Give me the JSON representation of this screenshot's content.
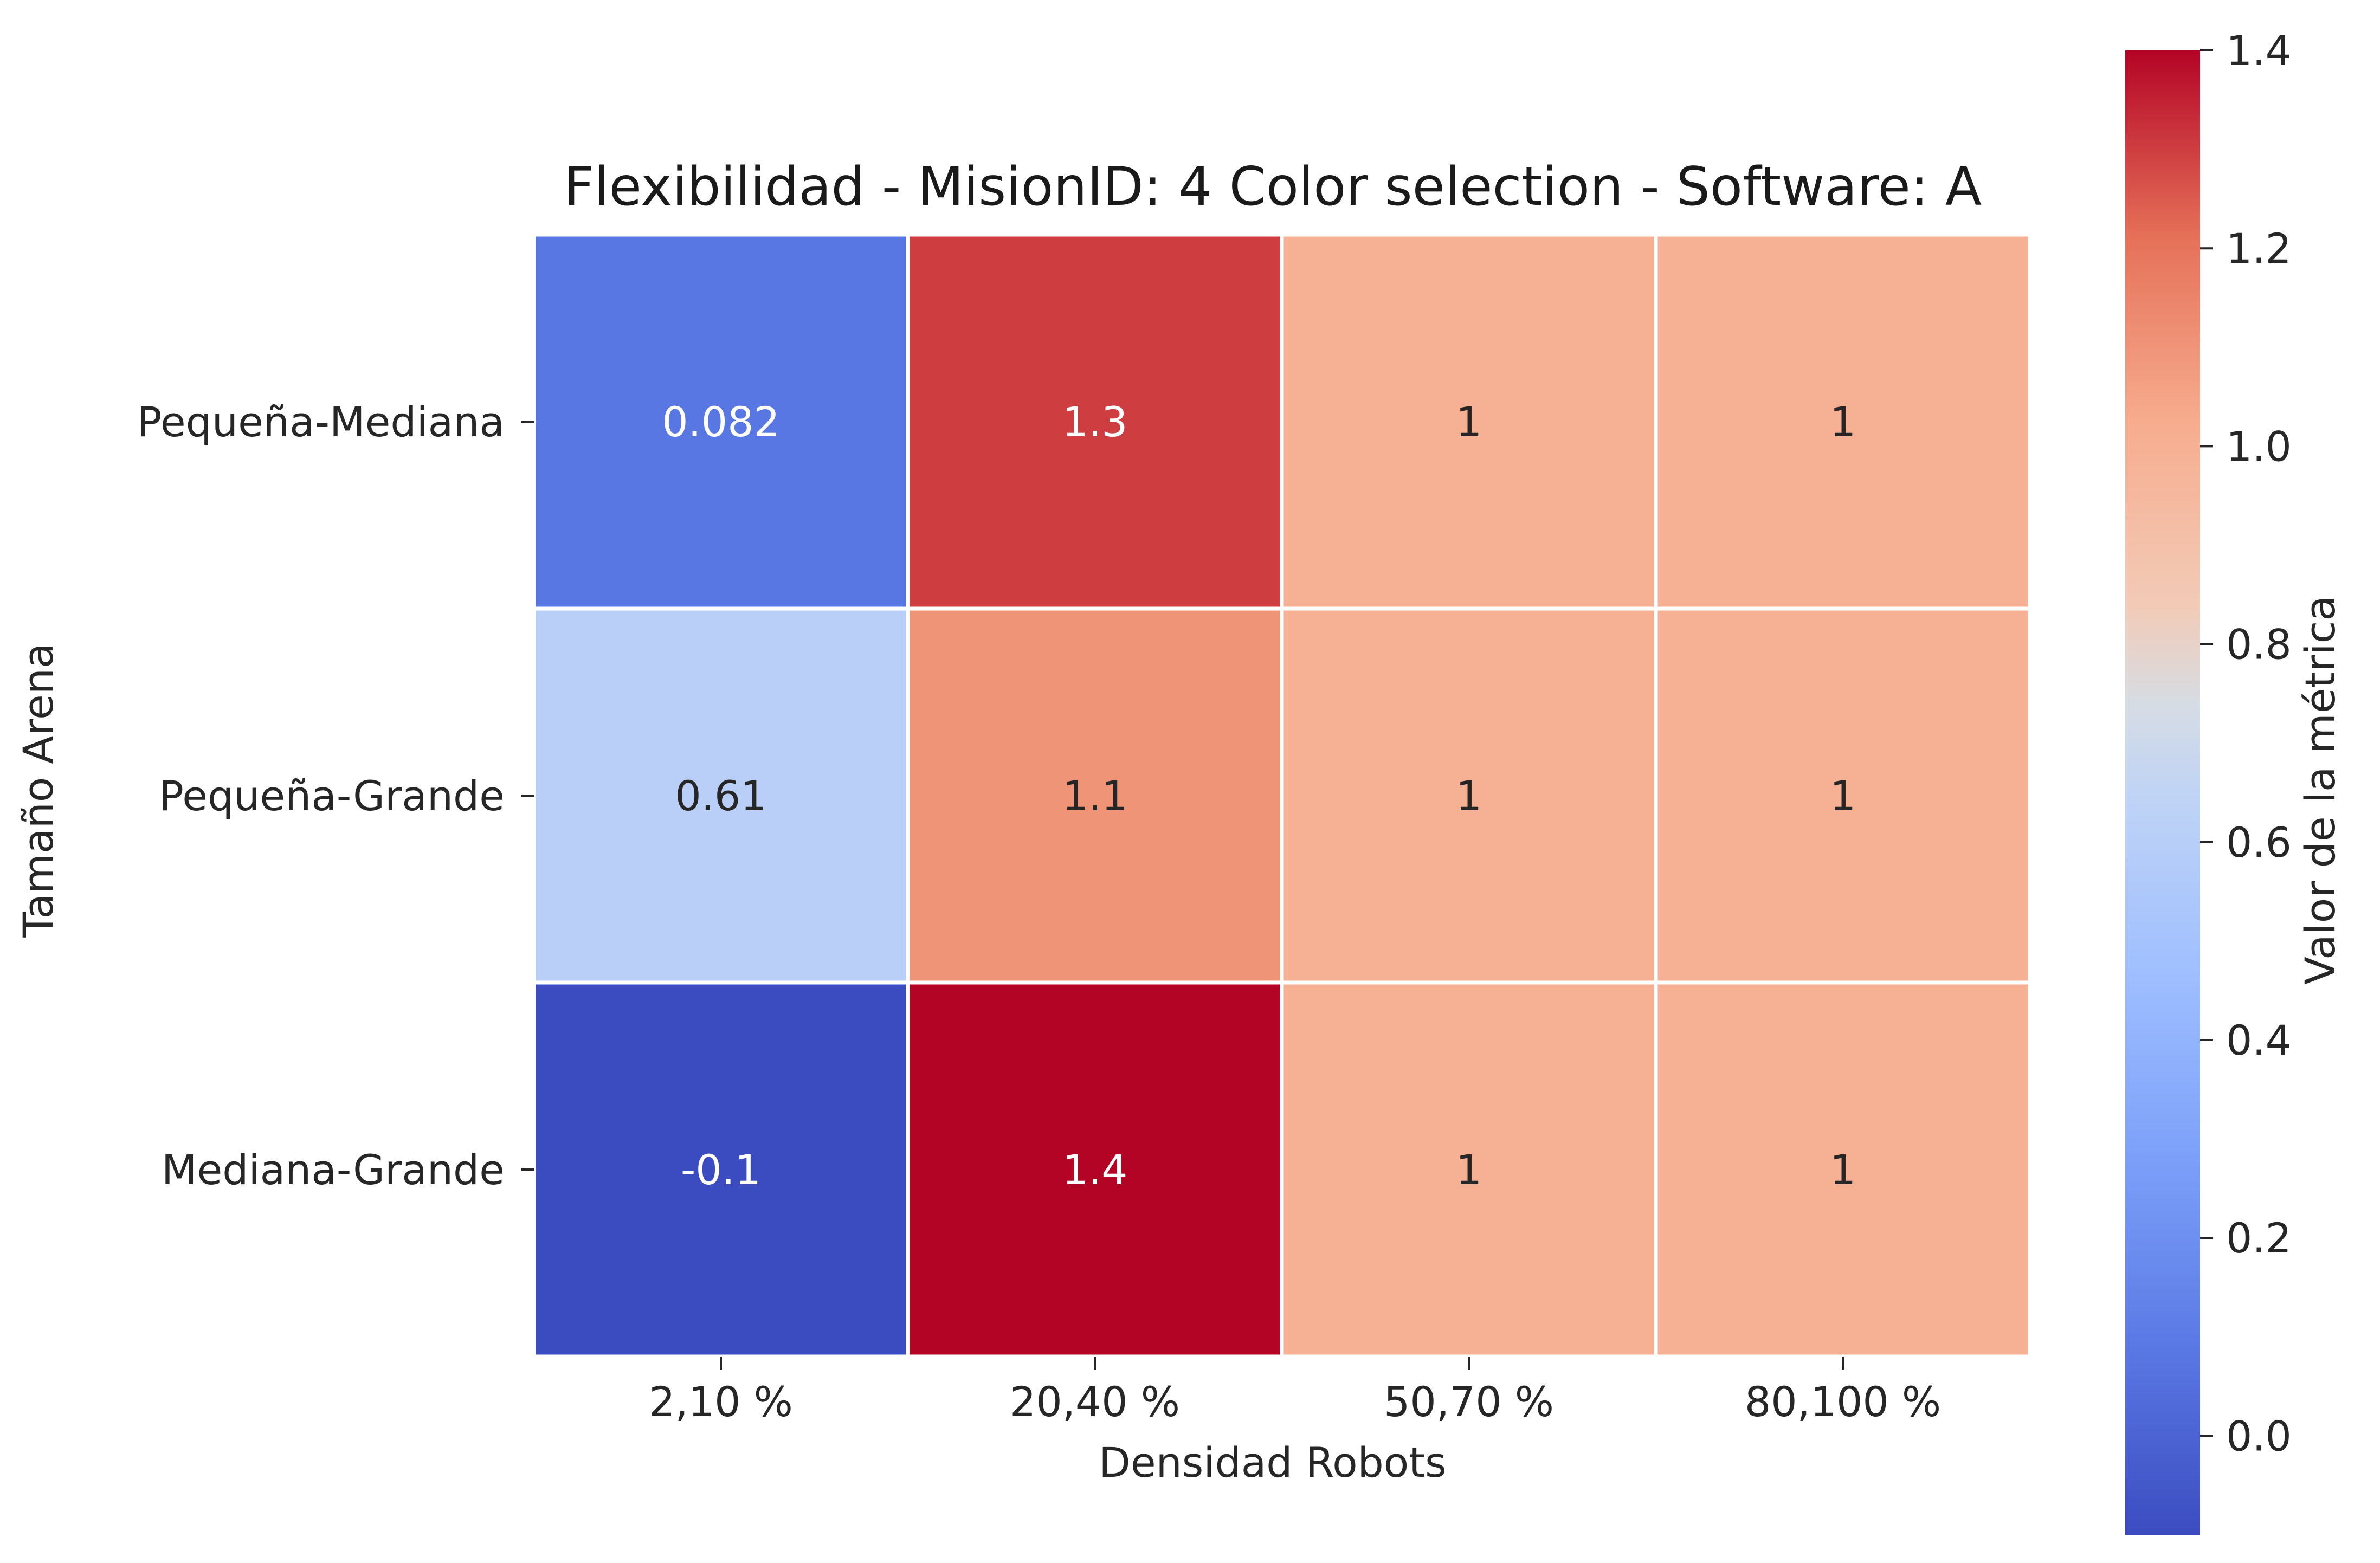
{
  "chart_data": {
    "type": "heatmap",
    "title": "Flexibilidad - MisionID: 4 Color selection - Software: A",
    "xlabel": "Densidad Robots",
    "ylabel": "Tamaño Arena",
    "x_categories": [
      "2,10 %",
      "20,40 %",
      "50,70 %",
      "80,100 %"
    ],
    "y_categories": [
      "Pequeña-Mediana",
      "Pequeña-Grande",
      "Mediana-Grande"
    ],
    "values": [
      [
        0.082,
        1.3,
        1.0,
        1.0
      ],
      [
        0.61,
        1.1,
        1.0,
        1.0
      ],
      [
        -0.1,
        1.4,
        1.0,
        1.0
      ]
    ],
    "annotations": [
      [
        "0.082",
        "1.3",
        "1",
        "1"
      ],
      [
        "0.61",
        "1.1",
        "1",
        "1"
      ],
      [
        "-0.1",
        "1.4",
        "1",
        "1"
      ]
    ],
    "colormap": "coolwarm",
    "vmin": -0.1,
    "vmax": 1.4,
    "colorbar": {
      "label": "Valor de la métrica",
      "ticks": [
        0.0,
        0.2,
        0.4,
        0.6,
        0.8,
        1.0,
        1.2,
        1.4
      ],
      "tick_labels": [
        "0.0",
        "0.2",
        "0.4",
        "0.6",
        "0.8",
        "1.0",
        "1.2",
        "1.4"
      ]
    }
  }
}
